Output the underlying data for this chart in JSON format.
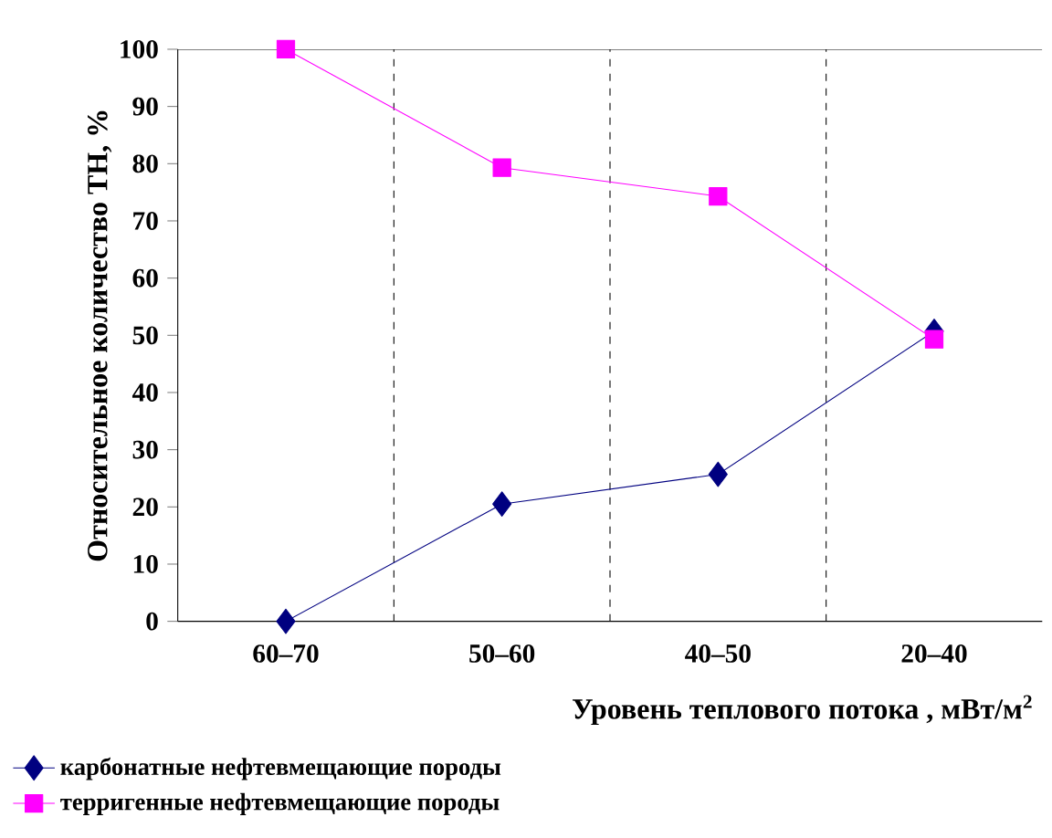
{
  "chart_data": {
    "type": "line",
    "xlabel": "Уровень теплового потока , мВт/м$^{2}$",
    "ylabel": "Относительное количество ТН, %",
    "categories": [
      "60–70",
      "50–60",
      "40–50",
      "20–40"
    ],
    "series": [
      {
        "name": "карбонатные нефтевмещающие породы",
        "color": "#000080",
        "marker": "diamond",
        "values": [
          0,
          20.5,
          25.7,
          50.7
        ]
      },
      {
        "name": "терригенные нефтевмещающие породы",
        "color": "#ff00ff",
        "marker": "square",
        "values": [
          100,
          79.3,
          74.3,
          49.3
        ]
      }
    ],
    "ylim": [
      0,
      100
    ],
    "yticks": [
      0,
      10,
      20,
      30,
      40,
      50,
      60,
      70,
      80,
      90,
      100
    ],
    "grid": "x",
    "legend": "bottom"
  }
}
